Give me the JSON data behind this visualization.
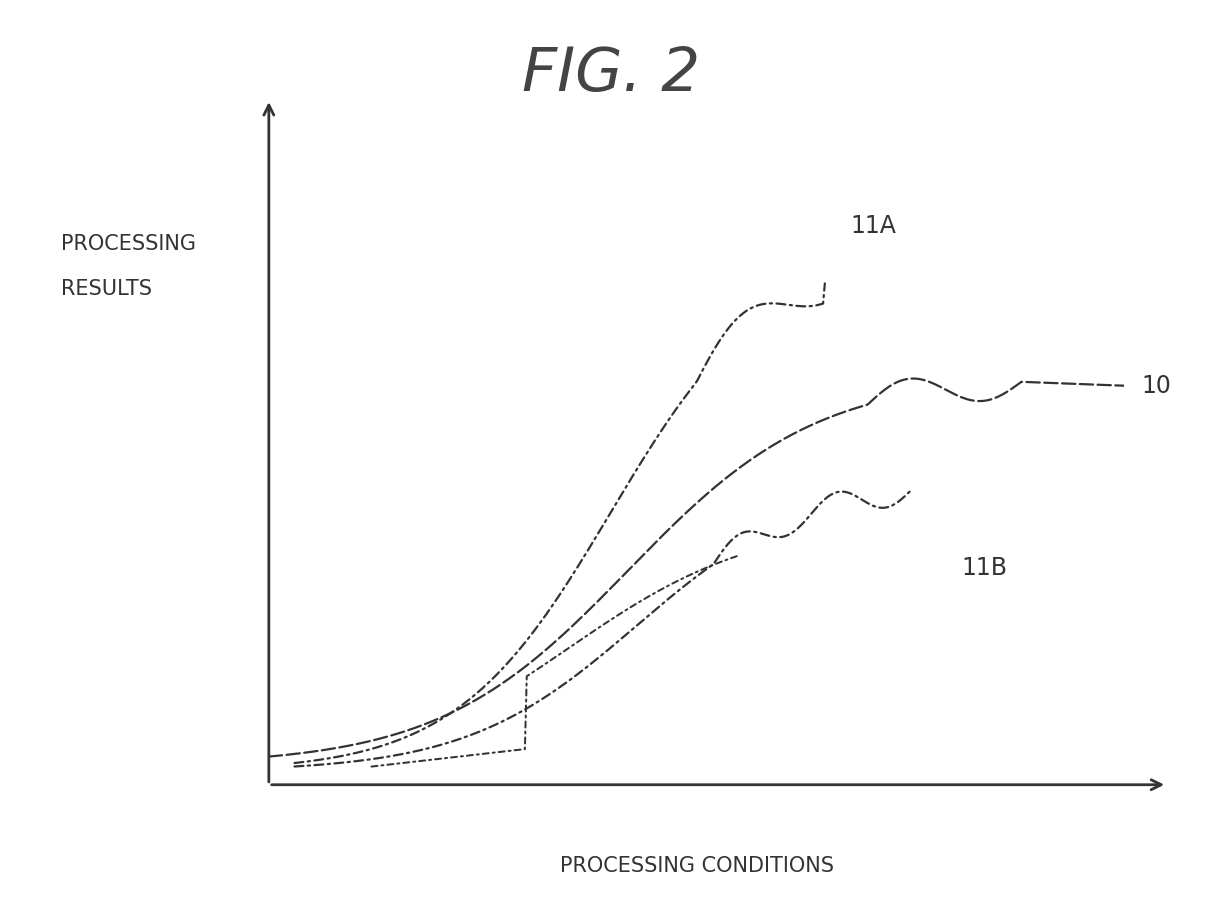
{
  "title": "FIG. 2",
  "xlabel": "PROCESSING CONDITIONS",
  "ylabel_line1": "PROCESSING",
  "ylabel_line2": "RESULTS",
  "label_10": "10",
  "label_11A": "11A",
  "label_11B": "11B",
  "bg_color": "#ffffff",
  "line_color": "#333333",
  "title_fontsize": 44,
  "axis_label_fontsize": 15,
  "curve_lw": 1.6
}
